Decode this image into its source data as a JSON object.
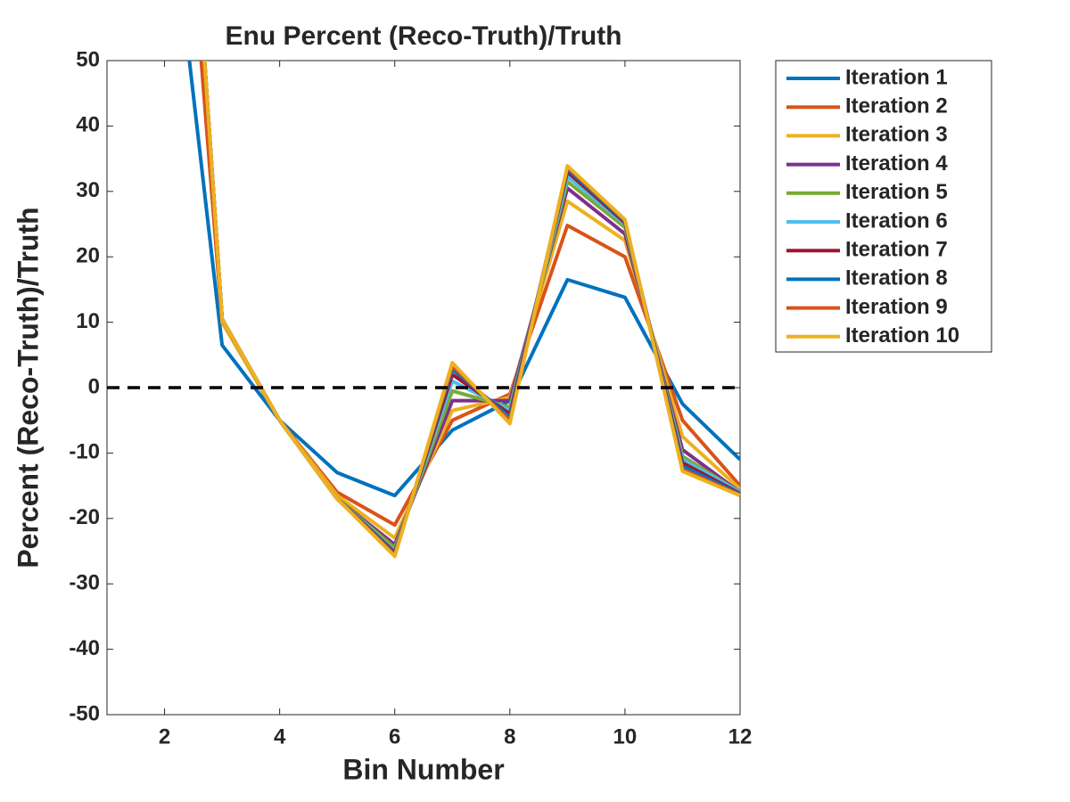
{
  "chart_data": {
    "type": "line",
    "title": "Enu Percent (Reco-Truth)/Truth",
    "x_label": "Bin Number",
    "y_label": "Percent (Reco-Truth)/Truth",
    "x": [
      2,
      3,
      4,
      5,
      6,
      7,
      8,
      9,
      10,
      11,
      12
    ],
    "series": [
      {
        "name": "Iteration 1",
        "color": "#0072BD",
        "values": [
          83,
          6.5,
          -5,
          -13,
          -16.5,
          -6.5,
          -2,
          16.5,
          13.8,
          -2.5,
          -11
        ]
      },
      {
        "name": "Iteration 2",
        "color": "#D95319",
        "values": [
          120,
          10,
          -5,
          -16,
          -21,
          -5,
          -1,
          24.8,
          20,
          -5,
          -15
        ]
      },
      {
        "name": "Iteration 3",
        "color": "#EDB120",
        "values": [
          140,
          10,
          -5,
          -16.5,
          -23,
          -3.5,
          -1.5,
          28.5,
          22.5,
          -7.5,
          -15.5
        ]
      },
      {
        "name": "Iteration 4",
        "color": "#7E2F8E",
        "values": [
          140,
          10.5,
          -5,
          -17,
          -24,
          -2,
          -2,
          30.5,
          23.5,
          -9.5,
          -16
        ]
      },
      {
        "name": "Iteration 5",
        "color": "#77AC30",
        "values": [
          140,
          10.5,
          -5,
          -17,
          -24.5,
          -0.5,
          -3,
          31.5,
          24.5,
          -10.5,
          -16
        ]
      },
      {
        "name": "Iteration 6",
        "color": "#4DBEEE",
        "values": [
          140,
          10.5,
          -5,
          -17,
          -25,
          1,
          -3.5,
          32.3,
          25,
          -11,
          -16
        ]
      },
      {
        "name": "Iteration 7",
        "color": "#A2142F",
        "values": [
          140,
          10.5,
          -5,
          -17,
          -25.2,
          2,
          -4,
          33,
          25.2,
          -11.5,
          -16.2
        ]
      },
      {
        "name": "Iteration 8",
        "color": "#0072BD",
        "values": [
          140,
          10.5,
          -5,
          -17,
          -25.4,
          2.8,
          -4.5,
          33.4,
          25.4,
          -12,
          -16.3
        ]
      },
      {
        "name": "Iteration 9",
        "color": "#D95319",
        "values": [
          140,
          10.5,
          -5,
          -17,
          -25.6,
          3.3,
          -5,
          33.7,
          25.6,
          -12.5,
          -16.4
        ]
      },
      {
        "name": "Iteration 10",
        "color": "#EDB120",
        "values": [
          140,
          10.5,
          -5,
          -17,
          -25.8,
          3.8,
          -5.5,
          33.9,
          25.7,
          -12.8,
          -16.5
        ]
      }
    ],
    "reference_line": 0,
    "xlim": [
      1,
      12
    ],
    "xticks": [
      2,
      4,
      6,
      8,
      10,
      12
    ],
    "ylim": [
      -50,
      50
    ],
    "yticks": [
      -50,
      -40,
      -30,
      -20,
      -10,
      0,
      10,
      20,
      30,
      40,
      50
    ],
    "grid": false,
    "legend": "outside-right"
  }
}
